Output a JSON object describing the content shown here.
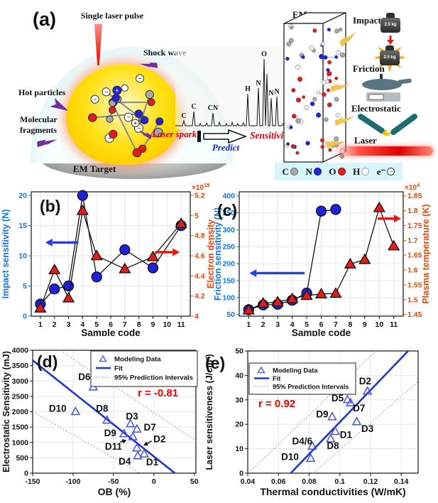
{
  "panel_a": {
    "label": "(a)",
    "single_laser_pulse": "Single laser pulse",
    "shock_wave": "Shock wave",
    "hot_particles": "Hot particles",
    "molecular_fragments_1": "Molecular",
    "molecular_fragments_2": "fragments",
    "em_target": "EM Target",
    "laser_spark": "Laser spark",
    "predict": "Predict",
    "sensitivities": "Sensitivities",
    "ems": "EMs",
    "tests": {
      "impact": "Impact",
      "friction": "Friction",
      "electrostatic": "Electrostatic",
      "laser": "Laser"
    },
    "weight_label": "2.5 kg",
    "spectrum_peaks": [
      {
        "label": "C",
        "x": 12,
        "h": 7
      },
      {
        "label": "C",
        "x": 26,
        "h": 20
      },
      {
        "label": "CN",
        "x": 53,
        "h": 18
      },
      {
        "label": "H",
        "x": 102,
        "h": 45
      },
      {
        "label": "N",
        "x": 117,
        "h": 53
      },
      {
        "label": "O",
        "x": 125,
        "h": 94
      },
      {
        "label": "",
        "x": 129,
        "h": 73
      },
      {
        "label": "N",
        "x": 135,
        "h": 39
      },
      {
        "label": "N",
        "x": 143,
        "h": 41
      }
    ],
    "atom_legend": [
      {
        "symbol": "C",
        "color": "#a9a9a9"
      },
      {
        "symbol": "N",
        "color": "#2222dd"
      },
      {
        "symbol": "O",
        "color": "#e31b1b"
      },
      {
        "symbol": "H",
        "color": "#ffffff"
      },
      {
        "symbol": "e⁻",
        "color": "#ffffff",
        "minus": true
      }
    ]
  },
  "chart_data": [
    {
      "id": "b",
      "type": "line",
      "panel_label": "(b)",
      "xlabel": "Sample code",
      "x_ticks": [
        1,
        2,
        3,
        4,
        5,
        6,
        7,
        8,
        9,
        10,
        11
      ],
      "xlim": [
        0.35,
        11.65
      ],
      "left_axis": {
        "label": "Impact sensitivity (N)",
        "color": "#1473e6",
        "lim": [
          0,
          20.6
        ],
        "ticks": [
          "0",
          "5",
          "10",
          "15",
          "20"
        ],
        "tick_vals": [
          0,
          5,
          10,
          15,
          20
        ]
      },
      "right_axis": {
        "label": "Electron density",
        "color": "#e8470b",
        "lim": [
          4,
          5.236
        ],
        "ticks": [
          "4",
          "4.2",
          "4.4",
          "4.6",
          "4.8",
          "5",
          "5.2"
        ],
        "tick_vals": [
          4,
          4.2,
          4.4,
          4.6,
          4.8,
          5,
          5.2
        ],
        "multiplier_base": "×10",
        "multiplier_exp": "19"
      },
      "series": [
        {
          "name": "Impact sensitivity",
          "axis": "left",
          "marker": "circle",
          "marker_color": "#1e22d8",
          "line_color": "#111111",
          "x": [
            1,
            2,
            3,
            4,
            5,
            7,
            9,
            11
          ],
          "y": [
            2,
            4.5,
            5,
            20,
            6.5,
            11,
            8,
            15
          ]
        },
        {
          "name": "Electron density",
          "axis": "right",
          "marker": "triangle",
          "marker_color": "#e31b1b",
          "line_color": "#111111",
          "x": [
            1,
            2,
            3,
            4,
            5,
            7,
            9,
            11
          ],
          "y": [
            4.08,
            4.46,
            4.18,
            5.05,
            4.6,
            4.47,
            4.59,
            4.92
          ]
        }
      ],
      "arrows": [
        {
          "color": "#2a3de0",
          "axis": "left",
          "x1": 3.7,
          "y1": 12.2,
          "x2": 1.35,
          "y2": 12.2
        },
        {
          "color": "#ee1111",
          "axis": "left",
          "x1": 9.15,
          "y1": 10.6,
          "x2": 10.9,
          "y2": 10.6
        }
      ]
    },
    {
      "id": "c",
      "type": "line",
      "panel_label": "(c)",
      "xlabel": "Sample code",
      "x_ticks": [
        1,
        2,
        3,
        4,
        5,
        6,
        7,
        8,
        9,
        10,
        11
      ],
      "xlim": [
        0.35,
        11.65
      ],
      "left_axis": {
        "label": "Friction sensitivity (N)",
        "color": "#1473e6",
        "lim": [
          45,
          412
        ],
        "ticks": [
          "50",
          "100",
          "150",
          "200",
          "250",
          "300",
          "350",
          "400"
        ],
        "tick_vals": [
          50,
          100,
          150,
          200,
          250,
          300,
          350,
          400
        ]
      },
      "right_axis": {
        "label": "Plasma temperature (K)",
        "color": "#e8470b",
        "lim": [
          1.4443,
          1.8637
        ],
        "ticks": [
          "1.45",
          "1.5",
          "1.55",
          "1.6",
          "1.65",
          "1.7",
          "1.75",
          "1.8",
          "1.85"
        ],
        "tick_vals": [
          1.45,
          1.5,
          1.55,
          1.6,
          1.65,
          1.7,
          1.75,
          1.8,
          1.85
        ],
        "multiplier_base": "×10",
        "multiplier_exp": "4"
      },
      "series": [
        {
          "name": "Friction sensitivity",
          "axis": "left",
          "marker": "circle",
          "marker_color": "#1e22d8",
          "line_color": "#111111",
          "x": [
            1,
            2,
            3,
            4,
            5,
            6,
            7
          ],
          "y": [
            64,
            78,
            80,
            92,
            113,
            355,
            360
          ]
        },
        {
          "name": "Plasma temperature",
          "axis": "right",
          "marker": "triangle",
          "marker_color": "#e31b1b",
          "line_color": "#111111",
          "x": [
            1,
            2,
            3,
            4,
            5,
            6,
            7,
            8,
            9,
            10,
            11
          ],
          "y": [
            1.465,
            1.488,
            1.492,
            1.503,
            1.514,
            1.519,
            1.521,
            1.62,
            1.635,
            1.81,
            1.681
          ]
        }
      ],
      "arrows": [
        {
          "color": "#2a3de0",
          "axis": "left",
          "x1": 4.85,
          "y1": 172,
          "x2": 1.05,
          "y2": 172
        },
        {
          "color": "#ee1111",
          "axis": "left",
          "x1": 9.9,
          "y1": 333,
          "x2": 11.5,
          "y2": 333
        }
      ]
    },
    {
      "id": "d",
      "type": "scatter",
      "panel_label": "(d)",
      "xlabel": "OB (%)",
      "ylabel": "Electrostatic Sensitivity (mJ)",
      "xlim": [
        -150,
        52
      ],
      "ylim": [
        0,
        4000
      ],
      "x_ticks": [
        "-150",
        "-100",
        "-50",
        "0",
        "50"
      ],
      "x_tick_vals": [
        -150,
        -100,
        -50,
        0,
        50
      ],
      "y_ticks": [
        "0",
        "500",
        "1000",
        "1500",
        "2000",
        "2500",
        "3000",
        "3500",
        "4000"
      ],
      "y_tick_vals": [
        0,
        500,
        1000,
        1500,
        2000,
        2500,
        3000,
        3500,
        4000
      ],
      "legend": [
        "Modeling Data",
        "Fit",
        "95% Prediction Intervals"
      ],
      "r_label": {
        "text": "r = -0.81",
        "x": 5,
        "y": 2500,
        "color": "#f00000"
      },
      "marker_color": "#4753d8",
      "fit_color": "#2133cc",
      "interval_color": "#8a93e6",
      "points": [
        {
          "label": "D1",
          "x": -12,
          "y": 620,
          "lx": -2,
          "ly": 350
        },
        {
          "label": "D2",
          "x": -21,
          "y": 815,
          "lx": 7,
          "ly": 1100,
          "arrow": true
        },
        {
          "label": "D3",
          "x": -29,
          "y": 1600,
          "lx": -27,
          "ly": 1840
        },
        {
          "label": "D4",
          "x": -20,
          "y": 560,
          "lx": -36,
          "ly": 370
        },
        {
          "label": "D6",
          "x": -75,
          "y": 2800,
          "lx": -86,
          "ly": 3120
        },
        {
          "label": "D7",
          "x": -21,
          "y": 1430,
          "lx": -5,
          "ly": 1480
        },
        {
          "label": "D8",
          "x": -58,
          "y": 1720,
          "lx": -64,
          "ly": 2090
        },
        {
          "label": "D9",
          "x": -37,
          "y": 1280,
          "lx": -54,
          "ly": 1300
        },
        {
          "label": "D10",
          "x": -97,
          "y": 2000,
          "lx": -119,
          "ly": 2090
        },
        {
          "label": "D11",
          "x": -26,
          "y": 1180,
          "lx": -50,
          "ly": 850,
          "arrow": true
        }
      ],
      "fit": {
        "x1": -150,
        "y1": 3670,
        "x2": 26,
        "y2": 0
      },
      "intervals": [
        {
          "x1": -116,
          "y1": 4000,
          "x2": 52,
          "y2": 1060
        },
        {
          "x1": -150,
          "y1": 2010,
          "x2": -17,
          "y2": 0
        }
      ]
    },
    {
      "id": "e",
      "type": "scatter",
      "panel_label": "(e)",
      "xlabel": "Thermal conductivities (W/mK)",
      "ylabel": "Laser sensitiveness (J/cm²)",
      "xlim": [
        0.04,
        0.151
      ],
      "ylim": [
        0,
        50
      ],
      "x_ticks": [
        "0.04",
        "0.06",
        "0.08",
        "0.1",
        "0.12",
        "0.14"
      ],
      "x_tick_vals": [
        0.04,
        0.06,
        0.08,
        0.1,
        0.12,
        0.14
      ],
      "y_ticks": [
        "0",
        "10",
        "20",
        "30",
        "40",
        "50"
      ],
      "y_tick_vals": [
        0,
        10,
        20,
        30,
        40,
        50
      ],
      "legend": [
        "Modeling Data",
        "Fit",
        "95% Prediction Intervals"
      ],
      "r_label": {
        "text": "r = 0.92",
        "x": 0.059,
        "y": 27,
        "color": "#f00000"
      },
      "marker_color": "#4753d8",
      "fit_color": "#2133cc",
      "interval_color": "#8a93e6",
      "points": [
        {
          "label": "D1",
          "x": 0.097,
          "y": 17,
          "lx": 0.104,
          "ly": 15.5
        },
        {
          "label": "D2",
          "x": 0.118,
          "y": 33.5,
          "lx": 0.1165,
          "ly": 37.5
        },
        {
          "label": "D3",
          "x": 0.111,
          "y": 21,
          "lx": 0.118,
          "ly": 18
        },
        {
          "label": "D4/6",
          "x": 0.082,
          "y": 11,
          "lx": 0.0755,
          "ly": 13
        },
        {
          "label": "D5",
          "x": 0.105,
          "y": 30,
          "lx": 0.0985,
          "ly": 30.5
        },
        {
          "label": "D7",
          "x": 0.107,
          "y": 28.7,
          "lx": 0.1125,
          "ly": 26.5
        },
        {
          "label": "D8",
          "x": 0.094,
          "y": 14,
          "lx": 0.0955,
          "ly": 11
        },
        {
          "label": "D9",
          "x": 0.095,
          "y": 23,
          "lx": 0.0885,
          "ly": 24
        },
        {
          "label": "D10",
          "x": 0.081,
          "y": 6,
          "lx": 0.0675,
          "ly": 6.5
        }
      ],
      "fit": {
        "x1": 0.068,
        "y1": 0,
        "x2": 0.1445,
        "y2": 50
      },
      "intervals": [
        {
          "x1": 0.0405,
          "y1": 0,
          "x2": 0.1235,
          "y2": 50
        },
        {
          "x1": 0.0825,
          "y1": 0,
          "x2": 0.151,
          "y2": 37.5
        }
      ]
    }
  ]
}
